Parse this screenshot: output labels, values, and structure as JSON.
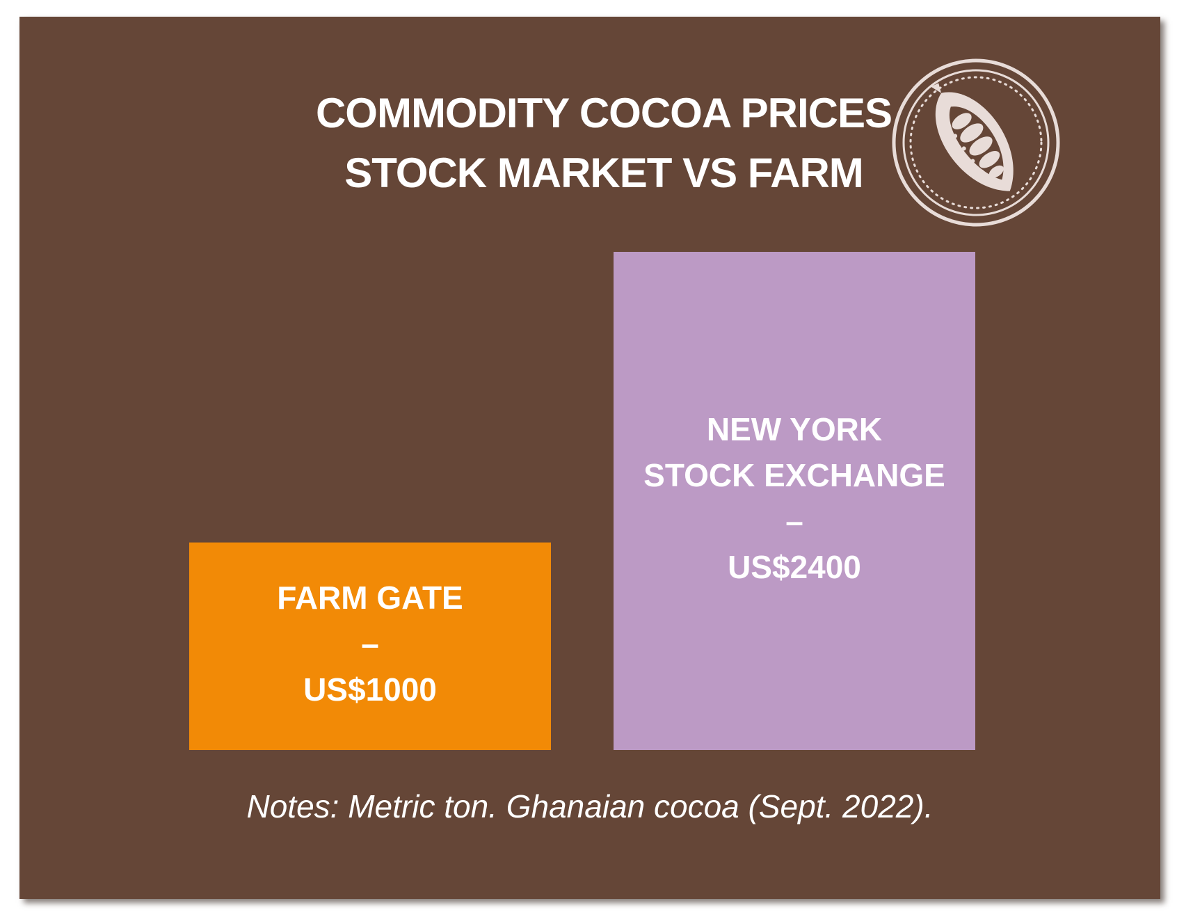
{
  "title": {
    "line1": "COMMODITY COCOA PRICES",
    "line2": "STOCK MARKET VS FARM"
  },
  "logo": {
    "icon": "cocoa-pod-icon",
    "ring_color": "#e8dcd8"
  },
  "chart_data": {
    "type": "bar",
    "title": "COMMODITY COCOA PRICES STOCK MARKET VS FARM",
    "categories": [
      "FARM GATE",
      "NEW YORK STOCK EXCHANGE"
    ],
    "values": [
      1000,
      2400
    ],
    "unit": "US$",
    "ylim": [
      0,
      2400
    ],
    "grid": false,
    "bars": [
      {
        "label_lines": [
          "FARM GATE",
          "–",
          "US$1000"
        ],
        "value": 1000,
        "color": "#f28a06"
      },
      {
        "label_lines": [
          "NEW YORK",
          "STOCK EXCHANGE",
          "–",
          "US$2400"
        ],
        "value": 2400,
        "color": "#bc9ac5"
      }
    ]
  },
  "notes": "Notes: Metric ton. Ghanaian cocoa (Sept. 2022).",
  "colors": {
    "background": "#654637",
    "text": "#ffffff"
  }
}
